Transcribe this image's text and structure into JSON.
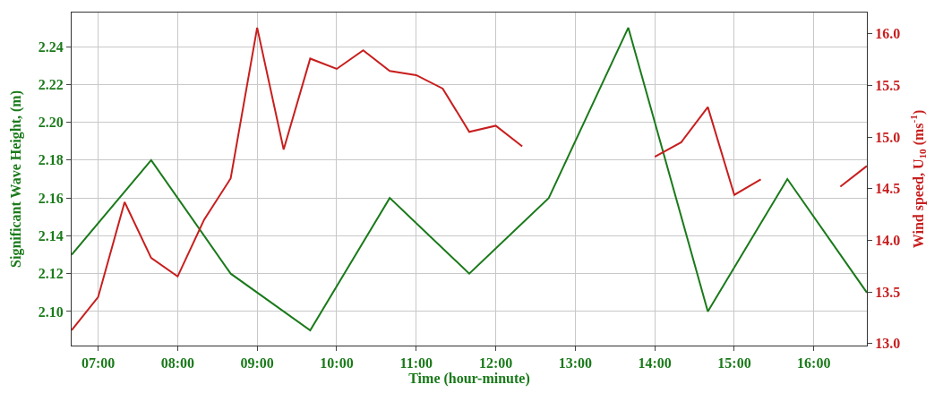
{
  "chart_data": {
    "type": "line",
    "xlabel": "Time (hour-minute)",
    "ylabel": "Significant Wave Height, (m)",
    "y2label": "Wind speed, U$_{10}$ (ms$^{-1}$)",
    "series": [
      {
        "color": "#1a7a1a",
        "x": [
          6.667,
          7.667,
          8.667,
          9.667,
          10.667,
          11.667,
          12.667,
          13.667,
          14.667,
          15.667,
          16.667
        ],
        "values": [
          2.13,
          2.18,
          2.12,
          2.09,
          2.16,
          2.12,
          2.16,
          2.25,
          2.1,
          2.17,
          2.11
        ]
      },
      {
        "color": "#c81e1e",
        "axis": "y2",
        "x": [
          6.667,
          7.0,
          7.333,
          7.667,
          8.0,
          8.333,
          8.667,
          9.0,
          9.333,
          9.667,
          10.0,
          10.333,
          10.667,
          11.0,
          11.333,
          11.667,
          12.0,
          12.333,
          12.667,
          13.0,
          13.333,
          13.667,
          14.0,
          14.333,
          14.667,
          15.0,
          15.333,
          15.667,
          16.0,
          16.333,
          16.667
        ],
        "values": [
          13.13,
          13.45,
          14.37,
          13.83,
          13.65,
          14.2,
          14.6,
          16.06,
          14.88,
          15.76,
          15.66,
          15.84,
          15.64,
          15.6,
          15.47,
          15.05,
          15.11,
          14.91,
          null,
          null,
          null,
          null,
          14.81,
          14.95,
          15.29,
          14.44,
          14.59,
          null,
          null,
          14.52,
          14.72
        ]
      }
    ],
    "xlim": [
      6.667,
      16.667
    ],
    "xticks": [
      {
        "value": 7,
        "label": "07:00"
      },
      {
        "value": 8,
        "label": "08:00"
      },
      {
        "value": 9,
        "label": "09:00"
      },
      {
        "value": 10,
        "label": "10:00"
      },
      {
        "value": 11,
        "label": "11:00"
      },
      {
        "value": 12,
        "label": "12:00"
      },
      {
        "value": 13,
        "label": "13:00"
      },
      {
        "value": 14,
        "label": "14:00"
      },
      {
        "value": 15,
        "label": "15:00"
      },
      {
        "value": 16,
        "label": "16:00"
      }
    ],
    "ylim": [
      2.082,
      2.258
    ],
    "yticks": [
      {
        "value": 2.1,
        "label": "2.10"
      },
      2.12,
      2.14,
      2.16,
      2.18,
      {
        "value": 2.2,
        "label": "2.20"
      },
      2.22,
      2.24
    ],
    "y2lim": [
      12.981,
      16.206
    ],
    "y2ticks": [
      {
        "value": 13,
        "label": "13.0"
      },
      13.5,
      {
        "value": 14,
        "label": "14.0"
      },
      14.5,
      {
        "value": 15,
        "label": "15.0"
      },
      15.5,
      {
        "value": 16,
        "label": "16.0"
      }
    ],
    "grid": true,
    "marker": "none",
    "line_style": "solid"
  }
}
